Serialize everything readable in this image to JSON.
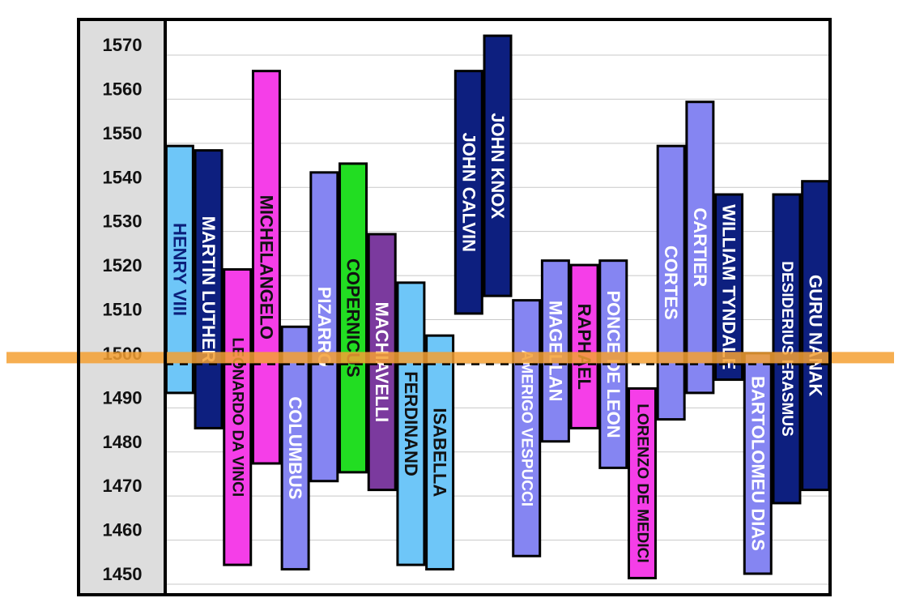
{
  "chart_data": {
    "type": "bar",
    "subtype": "floating-range-timeline",
    "title": "",
    "xlabel": "",
    "ylabel": "",
    "ylim": [
      1445,
      1572
    ],
    "yticks": [
      1450,
      1460,
      1470,
      1480,
      1490,
      1500,
      1510,
      1520,
      1530,
      1540,
      1550,
      1560,
      1570
    ],
    "grid": true,
    "legend": "none",
    "reference_line": {
      "value": 1497,
      "style": "dashed"
    },
    "highlight_band": {
      "value": 1499,
      "color": "#f5a033"
    },
    "bars": [
      {
        "label": "HENRY VIII",
        "start": 1491,
        "end": 1547,
        "color": "#6ec6f8",
        "text_color": "#0b1f7a"
      },
      {
        "label": "MARTIN LUTHER",
        "start": 1483,
        "end": 1546,
        "color": "#0d1f7f",
        "text_color": "#ffffff"
      },
      {
        "label": "LEONARDO DA VINCI",
        "start": 1452,
        "end": 1519,
        "color": "#f53ee8",
        "text_color": "#111111"
      },
      {
        "label": "MICHELANGELO",
        "start": 1475,
        "end": 1564,
        "color": "#f53ee8",
        "text_color": "#111111"
      },
      {
        "label": "COLUMBUS",
        "start": 1451,
        "end": 1506,
        "color": "#8585f2",
        "text_color": "#ffffff"
      },
      {
        "label": "PIZARRO",
        "start": 1471,
        "end": 1541,
        "color": "#8585f2",
        "text_color": "#ffffff"
      },
      {
        "label": "COPERNICUS",
        "start": 1473,
        "end": 1543,
        "color": "#22dd22",
        "text_color": "#111111"
      },
      {
        "label": "MACHIAVELLI",
        "start": 1469,
        "end": 1527,
        "color": "#7b3a9e",
        "text_color": "#ffffff"
      },
      {
        "label": "FERDINAND",
        "start": 1452,
        "end": 1516,
        "color": "#6ec6f8",
        "text_color": "#111111"
      },
      {
        "label": "ISABELLA",
        "start": 1451,
        "end": 1504,
        "color": "#6ec6f8",
        "text_color": "#111111"
      },
      {
        "label": "JOHN CALVIN",
        "start": 1509,
        "end": 1564,
        "color": "#0d1f7f",
        "text_color": "#ffffff"
      },
      {
        "label": "JOHN KNOX",
        "start": 1513,
        "end": 1572,
        "color": "#0d1f7f",
        "text_color": "#ffffff"
      },
      {
        "label": "AMERIGO VESPUCCI",
        "start": 1454,
        "end": 1512,
        "color": "#8585f2",
        "text_color": "#ffffff"
      },
      {
        "label": "MAGELLAN",
        "start": 1480,
        "end": 1521,
        "color": "#8585f2",
        "text_color": "#ffffff"
      },
      {
        "label": "RAPHAEL",
        "start": 1483,
        "end": 1520,
        "color": "#f53ee8",
        "text_color": "#111111"
      },
      {
        "label": "PONCE DE LEON",
        "start": 1474,
        "end": 1521,
        "color": "#8585f2",
        "text_color": "#ffffff"
      },
      {
        "label": "LORENZO DE MEDICI",
        "start": 1449,
        "end": 1492,
        "color": "#f53ee8",
        "text_color": "#111111"
      },
      {
        "label": "CORTES",
        "start": 1485,
        "end": 1547,
        "color": "#8585f2",
        "text_color": "#ffffff"
      },
      {
        "label": "CARTIER",
        "start": 1491,
        "end": 1557,
        "color": "#8585f2",
        "text_color": "#ffffff"
      },
      {
        "label": "WILLIAM TYNDALE",
        "start": 1494,
        "end": 1536,
        "color": "#0d1f7f",
        "text_color": "#ffffff"
      },
      {
        "label": "BARTOLOMEU DIAS",
        "start": 1450,
        "end": 1500,
        "color": "#8585f2",
        "text_color": "#ffffff"
      },
      {
        "label": "DESIDERIUS ERASMUS",
        "start": 1466,
        "end": 1536,
        "color": "#0d1f7f",
        "text_color": "#ffffff"
      },
      {
        "label": "GURU NANAK",
        "start": 1469,
        "end": 1539,
        "color": "#0d1f7f",
        "text_color": "#ffffff"
      }
    ]
  }
}
